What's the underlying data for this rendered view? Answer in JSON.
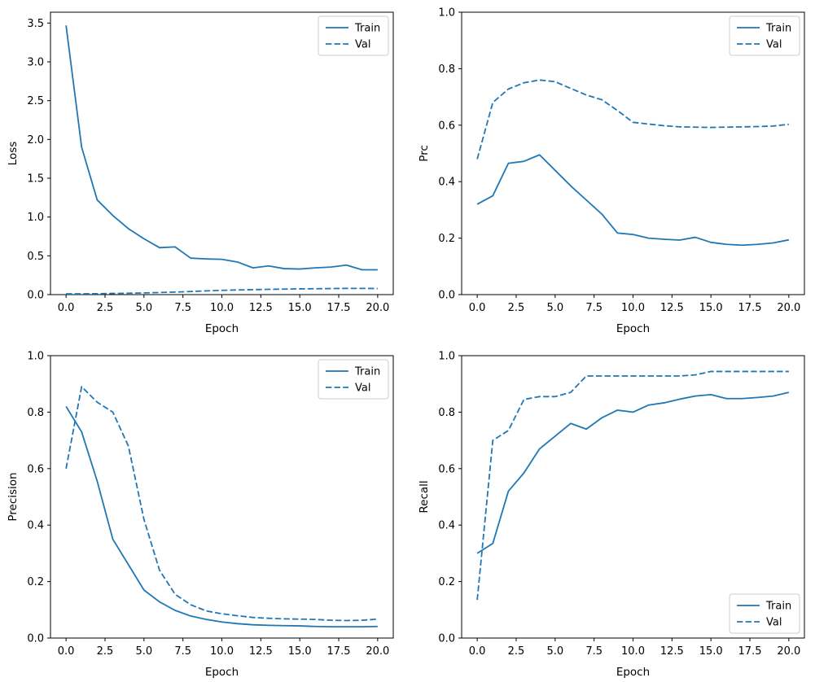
{
  "figure": {
    "background": "#ffffff",
    "line_color": "#1f77b4",
    "axis_color": "#000000",
    "legend_border_color": "#cccccc",
    "legend_labels": {
      "train": "Train",
      "val": "Val"
    }
  },
  "chart_data": [
    {
      "id": "loss",
      "type": "line",
      "title": "",
      "xlabel": "Epoch",
      "ylabel": "Loss",
      "grid": false,
      "legend_position": "upper right",
      "xlim": [
        -1,
        21
      ],
      "ylim": [
        0,
        3.64
      ],
      "xticks": [
        0,
        2.5,
        5,
        7.5,
        10,
        12.5,
        15,
        17.5,
        20
      ],
      "yticks": [
        0,
        0.5,
        1,
        1.5,
        2,
        2.5,
        3,
        3.5
      ],
      "x": [
        0,
        1,
        2,
        3,
        4,
        5,
        6,
        7,
        8,
        9,
        10,
        11,
        12,
        13,
        14,
        15,
        16,
        17,
        18,
        19,
        20
      ],
      "series": [
        {
          "name": "Train",
          "style": "solid",
          "values": [
            3.47,
            1.9,
            1.22,
            1.02,
            0.85,
            0.72,
            0.605,
            0.615,
            0.47,
            0.46,
            0.455,
            0.42,
            0.345,
            0.37,
            0.335,
            0.33,
            0.345,
            0.355,
            0.38,
            0.32,
            0.32
          ]
        },
        {
          "name": "Val",
          "style": "dashed",
          "values": [
            0.01,
            0.01,
            0.012,
            0.015,
            0.018,
            0.022,
            0.027,
            0.033,
            0.04,
            0.048,
            0.055,
            0.06,
            0.064,
            0.068,
            0.071,
            0.074,
            0.076,
            0.078,
            0.08,
            0.08,
            0.078
          ]
        }
      ]
    },
    {
      "id": "prc",
      "type": "line",
      "title": "",
      "xlabel": "Epoch",
      "ylabel": "Prc",
      "grid": false,
      "legend_position": "upper right",
      "xlim": [
        -1,
        21
      ],
      "ylim": [
        0,
        1
      ],
      "xticks": [
        0,
        2.5,
        5,
        7.5,
        10,
        12.5,
        15,
        17.5,
        20
      ],
      "yticks": [
        0,
        0.2,
        0.4,
        0.6,
        0.8,
        1.0
      ],
      "x": [
        0,
        1,
        2,
        3,
        4,
        5,
        6,
        7,
        8,
        9,
        10,
        11,
        12,
        13,
        14,
        15,
        16,
        17,
        18,
        19,
        20
      ],
      "series": [
        {
          "name": "Train",
          "style": "solid",
          "values": [
            0.32,
            0.35,
            0.465,
            0.472,
            0.495,
            0.44,
            0.385,
            0.335,
            0.285,
            0.218,
            0.213,
            0.2,
            0.196,
            0.193,
            0.203,
            0.185,
            0.178,
            0.175,
            0.178,
            0.183,
            0.194
          ]
        },
        {
          "name": "Val",
          "style": "dashed",
          "values": [
            0.48,
            0.68,
            0.728,
            0.75,
            0.76,
            0.754,
            0.73,
            0.707,
            0.69,
            0.652,
            0.61,
            0.604,
            0.598,
            0.594,
            0.593,
            0.592,
            0.593,
            0.594,
            0.595,
            0.597,
            0.603
          ]
        }
      ]
    },
    {
      "id": "precision",
      "type": "line",
      "title": "",
      "xlabel": "Epoch",
      "ylabel": "Precision",
      "grid": false,
      "legend_position": "upper right",
      "xlim": [
        -1,
        21
      ],
      "ylim": [
        0,
        1
      ],
      "xticks": [
        0,
        2.5,
        5,
        7.5,
        10,
        12.5,
        15,
        17.5,
        20
      ],
      "yticks": [
        0,
        0.2,
        0.4,
        0.6,
        0.8,
        1.0
      ],
      "x": [
        0,
        1,
        2,
        3,
        4,
        5,
        6,
        7,
        8,
        9,
        10,
        11,
        12,
        13,
        14,
        15,
        16,
        17,
        18,
        19,
        20
      ],
      "series": [
        {
          "name": "Train",
          "style": "solid",
          "values": [
            0.82,
            0.73,
            0.555,
            0.35,
            0.26,
            0.17,
            0.128,
            0.098,
            0.078,
            0.066,
            0.057,
            0.051,
            0.047,
            0.045,
            0.044,
            0.043,
            0.041,
            0.04,
            0.04,
            0.04,
            0.041
          ]
        },
        {
          "name": "Val",
          "style": "dashed",
          "values": [
            0.6,
            0.89,
            0.835,
            0.8,
            0.68,
            0.42,
            0.24,
            0.155,
            0.118,
            0.096,
            0.086,
            0.079,
            0.073,
            0.07,
            0.068,
            0.067,
            0.066,
            0.063,
            0.062,
            0.063,
            0.067
          ]
        }
      ]
    },
    {
      "id": "recall",
      "type": "line",
      "title": "",
      "xlabel": "Epoch",
      "ylabel": "Recall",
      "grid": false,
      "legend_position": "lower right",
      "xlim": [
        -1,
        21
      ],
      "ylim": [
        0,
        1
      ],
      "xticks": [
        0,
        2.5,
        5,
        7.5,
        10,
        12.5,
        15,
        17.5,
        20
      ],
      "yticks": [
        0,
        0.2,
        0.4,
        0.6,
        0.8,
        1.0
      ],
      "x": [
        0,
        1,
        2,
        3,
        4,
        5,
        6,
        7,
        8,
        9,
        10,
        11,
        12,
        13,
        14,
        15,
        16,
        17,
        18,
        19,
        20
      ],
      "series": [
        {
          "name": "Train",
          "style": "solid",
          "values": [
            0.3,
            0.335,
            0.52,
            0.585,
            0.67,
            0.715,
            0.76,
            0.74,
            0.78,
            0.807,
            0.8,
            0.825,
            0.833,
            0.846,
            0.857,
            0.862,
            0.848,
            0.848,
            0.852,
            0.857,
            0.87
          ]
        },
        {
          "name": "Val",
          "style": "dashed",
          "values": [
            0.135,
            0.7,
            0.735,
            0.845,
            0.855,
            0.855,
            0.87,
            0.928,
            0.928,
            0.928,
            0.928,
            0.928,
            0.928,
            0.928,
            0.932,
            0.944,
            0.944,
            0.944,
            0.944,
            0.944,
            0.944
          ]
        }
      ]
    }
  ]
}
